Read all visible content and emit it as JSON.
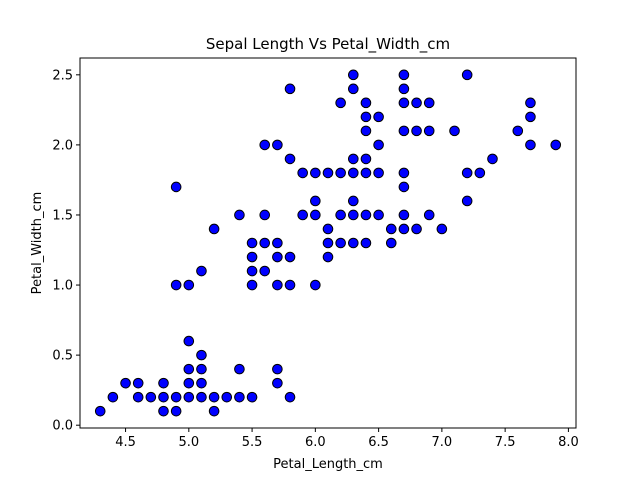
{
  "chart_data": {
    "type": "scatter",
    "title": "Sepal Length Vs Petal_Width_cm",
    "xlabel": "Petal_Length_cm",
    "ylabel": "Petal_Width_cm",
    "xlim": [
      4.14,
      8.06
    ],
    "ylim": [
      -0.02,
      2.62
    ],
    "xticks": [
      "4.5",
      "5.0",
      "5.5",
      "6.0",
      "6.5",
      "7.0",
      "7.5",
      "8.0"
    ],
    "yticks": [
      "0.0",
      "0.5",
      "1.0",
      "1.5",
      "2.0",
      "2.5"
    ],
    "grid": false,
    "marker_color": "#0000ff",
    "marker_edge_color": "#000000",
    "points": [
      [
        4.3,
        0.1
      ],
      [
        4.4,
        0.2
      ],
      [
        4.5,
        0.3
      ],
      [
        4.6,
        0.2
      ],
      [
        4.6,
        0.3
      ],
      [
        4.7,
        0.2
      ],
      [
        4.8,
        0.1
      ],
      [
        4.8,
        0.2
      ],
      [
        4.8,
        0.3
      ],
      [
        4.9,
        0.1
      ],
      [
        4.9,
        0.2
      ],
      [
        4.9,
        1.0
      ],
      [
        4.9,
        1.7
      ],
      [
        5.0,
        0.2
      ],
      [
        5.0,
        0.3
      ],
      [
        5.0,
        0.4
      ],
      [
        5.0,
        0.6
      ],
      [
        5.0,
        1.0
      ],
      [
        5.1,
        0.2
      ],
      [
        5.1,
        0.3
      ],
      [
        5.1,
        0.4
      ],
      [
        5.1,
        0.5
      ],
      [
        5.1,
        1.1
      ],
      [
        5.2,
        0.1
      ],
      [
        5.2,
        0.2
      ],
      [
        5.2,
        1.4
      ],
      [
        5.3,
        0.2
      ],
      [
        5.4,
        0.2
      ],
      [
        5.4,
        0.4
      ],
      [
        5.4,
        1.5
      ],
      [
        5.5,
        0.2
      ],
      [
        5.5,
        1.0
      ],
      [
        5.5,
        1.1
      ],
      [
        5.5,
        1.2
      ],
      [
        5.5,
        1.3
      ],
      [
        5.6,
        1.1
      ],
      [
        5.6,
        1.3
      ],
      [
        5.6,
        1.5
      ],
      [
        5.6,
        2.0
      ],
      [
        5.7,
        0.3
      ],
      [
        5.7,
        0.4
      ],
      [
        5.7,
        1.0
      ],
      [
        5.7,
        1.2
      ],
      [
        5.7,
        1.3
      ],
      [
        5.7,
        2.0
      ],
      [
        5.8,
        0.2
      ],
      [
        5.8,
        1.0
      ],
      [
        5.8,
        1.2
      ],
      [
        5.8,
        1.9
      ],
      [
        5.8,
        2.4
      ],
      [
        5.9,
        1.5
      ],
      [
        5.9,
        1.8
      ],
      [
        6.0,
        1.0
      ],
      [
        6.0,
        1.5
      ],
      [
        6.0,
        1.6
      ],
      [
        6.0,
        1.8
      ],
      [
        6.1,
        1.2
      ],
      [
        6.1,
        1.3
      ],
      [
        6.1,
        1.4
      ],
      [
        6.1,
        1.8
      ],
      [
        6.2,
        1.3
      ],
      [
        6.2,
        1.5
      ],
      [
        6.2,
        1.8
      ],
      [
        6.2,
        2.3
      ],
      [
        6.3,
        1.3
      ],
      [
        6.3,
        1.5
      ],
      [
        6.3,
        1.6
      ],
      [
        6.3,
        1.8
      ],
      [
        6.3,
        1.9
      ],
      [
        6.3,
        2.4
      ],
      [
        6.3,
        2.5
      ],
      [
        6.4,
        1.3
      ],
      [
        6.4,
        1.5
      ],
      [
        6.4,
        1.8
      ],
      [
        6.4,
        1.9
      ],
      [
        6.4,
        2.1
      ],
      [
        6.4,
        2.2
      ],
      [
        6.4,
        2.3
      ],
      [
        6.5,
        1.5
      ],
      [
        6.5,
        1.8
      ],
      [
        6.5,
        2.0
      ],
      [
        6.5,
        2.2
      ],
      [
        6.6,
        1.3
      ],
      [
        6.6,
        1.4
      ],
      [
        6.7,
        1.4
      ],
      [
        6.7,
        1.5
      ],
      [
        6.7,
        1.7
      ],
      [
        6.7,
        1.8
      ],
      [
        6.7,
        2.1
      ],
      [
        6.7,
        2.3
      ],
      [
        6.7,
        2.4
      ],
      [
        6.7,
        2.5
      ],
      [
        6.8,
        1.4
      ],
      [
        6.8,
        2.1
      ],
      [
        6.8,
        2.3
      ],
      [
        6.9,
        1.5
      ],
      [
        6.9,
        2.1
      ],
      [
        6.9,
        2.3
      ],
      [
        7.0,
        1.4
      ],
      [
        7.1,
        2.1
      ],
      [
        7.2,
        1.6
      ],
      [
        7.2,
        1.8
      ],
      [
        7.2,
        2.5
      ],
      [
        7.3,
        1.8
      ],
      [
        7.4,
        1.9
      ],
      [
        7.6,
        2.1
      ],
      [
        7.7,
        2.0
      ],
      [
        7.7,
        2.2
      ],
      [
        7.7,
        2.3
      ],
      [
        7.9,
        2.0
      ]
    ]
  }
}
